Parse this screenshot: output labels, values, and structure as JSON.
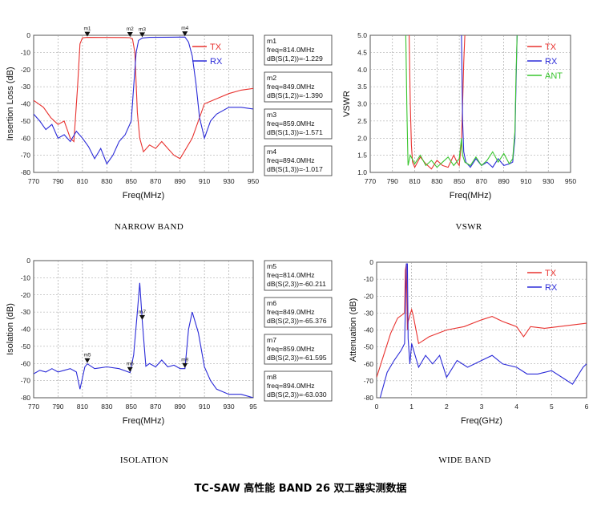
{
  "footer_title": "TC-SAW 高性能 BAND 26 双工器实测数据",
  "chart_data": [
    {
      "type": "line",
      "id": "narrow",
      "caption": "NARROW BAND",
      "xlabel": "Freq(MHz)",
      "ylabel": "Insertion Loss (dB)",
      "xlim": [
        770,
        950
      ],
      "ylim": [
        -80,
        0
      ],
      "xticks": [
        "770",
        "790",
        "810",
        "830",
        "850",
        "870",
        "890",
        "910",
        "930",
        "950"
      ],
      "yticks": [
        "0",
        "-10",
        "-20",
        "-30",
        "-40",
        "-50",
        "-60",
        "-70",
        "-80"
      ],
      "grid": true,
      "legend": "top-right",
      "series": [
        {
          "name": "TX",
          "color": "#e8322f",
          "x": [
            770,
            778,
            784,
            790,
            795,
            800,
            803,
            806,
            808,
            810,
            814,
            830,
            845,
            849,
            851,
            853,
            855,
            857,
            860,
            865,
            870,
            875,
            880,
            885,
            890,
            900,
            910,
            920,
            930,
            940,
            950
          ],
          "y": [
            -38,
            -42,
            -48,
            -52,
            -50,
            -60,
            -62,
            -30,
            -5,
            -1.5,
            -1.229,
            -1.25,
            -1.3,
            -1.39,
            -2,
            -10,
            -45,
            -60,
            -68,
            -64,
            -66,
            -62,
            -66,
            -70,
            -72,
            -60,
            -40,
            -37,
            -34,
            -32,
            -31
          ]
        },
        {
          "name": "RX",
          "color": "#2b2bd8",
          "x": [
            770,
            775,
            780,
            785,
            790,
            795,
            800,
            805,
            810,
            815,
            820,
            825,
            830,
            835,
            840,
            845,
            850,
            852,
            854,
            856,
            859,
            865,
            880,
            894,
            897,
            900,
            903,
            906,
            910,
            915,
            920,
            930,
            940,
            950
          ],
          "y": [
            -46,
            -50,
            -55,
            -52,
            -60,
            -58,
            -62,
            -56,
            -60,
            -65,
            -72,
            -66,
            -75,
            -70,
            -62,
            -58,
            -50,
            -30,
            -10,
            -3,
            -1.571,
            -1.2,
            -1.1,
            -1.017,
            -4,
            -12,
            -28,
            -48,
            -60,
            -50,
            -46,
            -42,
            -42,
            -43
          ]
        }
      ],
      "markers": [
        {
          "label": "m1",
          "freq": 814,
          "text": [
            "m1",
            "freq=814.0MHz",
            "dB(S(1,2))=-1.229"
          ]
        },
        {
          "label": "m2",
          "freq": 849,
          "text": [
            "m2",
            "freq=849.0MHz",
            "dB(S(1,2))=-1.390"
          ]
        },
        {
          "label": "m3",
          "freq": 859,
          "text": [
            "m3",
            "freq=859.0MHz",
            "dB(S(1,3))=-1.571"
          ]
        },
        {
          "label": "m4",
          "freq": 894,
          "text": [
            "m4",
            "freq=894.0MHz",
            "dB(S(1,3))=-1.017"
          ]
        }
      ]
    },
    {
      "type": "line",
      "id": "vswr",
      "caption": "VSWR",
      "xlabel": "Freq(MHz)",
      "ylabel": "VSWR",
      "xlim": [
        770,
        950
      ],
      "ylim": [
        1.0,
        5.0
      ],
      "xticks": [
        "770",
        "790",
        "810",
        "830",
        "850",
        "870",
        "890",
        "910",
        "930",
        "950"
      ],
      "yticks": [
        "5.0",
        "4.5",
        "4.0",
        "3.5",
        "3.0",
        "2.5",
        "2.0",
        "1.5",
        "1.0"
      ],
      "grid": true,
      "legend": "top-right",
      "series": [
        {
          "name": "TX",
          "color": "#e8322f",
          "x": [
            805,
            806,
            807,
            808,
            810,
            815,
            820,
            825,
            830,
            835,
            840,
            845,
            848,
            850,
            852,
            853,
            854,
            855
          ],
          "y": [
            5,
            3,
            1.8,
            1.3,
            1.15,
            1.45,
            1.25,
            1.1,
            1.35,
            1.2,
            1.15,
            1.5,
            1.3,
            1.2,
            1.9,
            3.0,
            4.2,
            5
          ]
        },
        {
          "name": "RX",
          "color": "#2b2bd8",
          "x": [
            852,
            853,
            854,
            856,
            860,
            865,
            870,
            875,
            880,
            885,
            890,
            895,
            898,
            900,
            901,
            902
          ],
          "y": [
            5,
            2.5,
            1.6,
            1.3,
            1.15,
            1.4,
            1.2,
            1.3,
            1.15,
            1.4,
            1.2,
            1.25,
            1.3,
            2.0,
            3.5,
            5
          ]
        },
        {
          "name": "ANT",
          "color": "#39c52e",
          "x": [
            802,
            803,
            804,
            806,
            810,
            815,
            820,
            825,
            830,
            835,
            840,
            845,
            850,
            852,
            853,
            855,
            860,
            865,
            870,
            875,
            880,
            885,
            890,
            895,
            898,
            900,
            901,
            902
          ],
          "y": [
            5,
            2.8,
            1.2,
            1.5,
            1.25,
            1.5,
            1.2,
            1.35,
            1.15,
            1.3,
            1.45,
            1.2,
            1.4,
            2.0,
            1.5,
            1.3,
            1.2,
            1.45,
            1.2,
            1.35,
            1.6,
            1.3,
            1.55,
            1.25,
            1.4,
            2.2,
            3.8,
            5
          ]
        }
      ]
    },
    {
      "type": "line",
      "id": "isolation",
      "caption": "ISOLATION",
      "xlabel": "Freq(MHz)",
      "ylabel": "Isolation (dB)",
      "xlim": [
        770,
        950
      ],
      "ylim": [
        -80,
        0
      ],
      "xticks": [
        "770",
        "790",
        "810",
        "830",
        "850",
        "870",
        "890",
        "910",
        "930",
        "95"
      ],
      "yticks": [
        "0",
        "-10",
        "-20",
        "-30",
        "-40",
        "-50",
        "-60",
        "-70",
        "-80"
      ],
      "grid": true,
      "series": [
        {
          "name": "S(2,3)",
          "color": "#2b2bd8",
          "x": [
            770,
            775,
            780,
            785,
            790,
            795,
            800,
            805,
            808,
            812,
            814,
            820,
            830,
            840,
            849,
            852,
            855,
            857,
            859,
            862,
            865,
            870,
            875,
            880,
            885,
            890,
            894,
            897,
            900,
            905,
            910,
            915,
            920,
            930,
            940,
            950
          ],
          "y": [
            -66,
            -64,
            -65,
            -63,
            -65,
            -64,
            -63,
            -65,
            -75,
            -62,
            -60.211,
            -63,
            -62,
            -63,
            -65.376,
            -55,
            -30,
            -13,
            -35,
            -61.595,
            -60,
            -62,
            -58,
            -62,
            -61,
            -63,
            -63.03,
            -40,
            -30,
            -42,
            -62,
            -70,
            -75,
            -78,
            -78,
            -80
          ]
        }
      ],
      "markers": [
        {
          "label": "m5",
          "freq": 814,
          "text": [
            "m5",
            "freq=814.0MHz",
            "dB(S(2,3))=-60.211"
          ]
        },
        {
          "label": "m6",
          "freq": 849,
          "text": [
            "m6",
            "freq=849.0MHz",
            "dB(S(2,3))=-65.376"
          ]
        },
        {
          "label": "m7",
          "freq": 859,
          "text": [
            "m7",
            "freq=859.0MHz",
            "dB(S(2,3))=-61.595"
          ]
        },
        {
          "label": "m8",
          "freq": 894,
          "text": [
            "m8",
            "freq=894.0MHz",
            "dB(S(2,3))=-63.030"
          ]
        }
      ]
    },
    {
      "type": "line",
      "id": "wide",
      "caption": "WIDE BAND",
      "xlabel": "Freq(GHz)",
      "ylabel": "Attenuation (dB)",
      "xlim": [
        0,
        6
      ],
      "ylim": [
        -80,
        0
      ],
      "xticks": [
        "0",
        "1",
        "2",
        "3",
        "4",
        "5",
        "6"
      ],
      "yticks": [
        "0",
        "-10",
        "-20",
        "-30",
        "-40",
        "-50",
        "-60",
        "-70",
        "-80"
      ],
      "grid": true,
      "legend": "top-right",
      "series": [
        {
          "name": "TX",
          "color": "#e8322f",
          "x": [
            0,
            0.2,
            0.4,
            0.6,
            0.8,
            0.82,
            0.85,
            0.88,
            0.9,
            1.0,
            1.05,
            1.2,
            1.5,
            2.0,
            2.5,
            3.0,
            3.3,
            3.6,
            4.0,
            4.2,
            4.4,
            4.8,
            5.2,
            5.6,
            6.0
          ],
          "y": [
            -68,
            -55,
            -42,
            -33,
            -30,
            -5,
            -1,
            -40,
            -35,
            -28,
            -32,
            -48,
            -44,
            -40,
            -38,
            -34,
            -32,
            -35,
            -38,
            -44,
            -38,
            -39,
            -38,
            -37,
            -36
          ]
        },
        {
          "name": "RX",
          "color": "#2b2bd8",
          "x": [
            0.1,
            0.3,
            0.5,
            0.7,
            0.8,
            0.85,
            0.88,
            0.9,
            0.95,
            1.0,
            1.2,
            1.4,
            1.6,
            1.8,
            2.0,
            2.3,
            2.6,
            3.0,
            3.3,
            3.6,
            4.0,
            4.3,
            4.6,
            5.0,
            5.3,
            5.6,
            5.9,
            6.0
          ],
          "y": [
            -80,
            -65,
            -58,
            -52,
            -48,
            -1,
            -1,
            -45,
            -60,
            -48,
            -62,
            -55,
            -60,
            -55,
            -68,
            -58,
            -62,
            -58,
            -55,
            -60,
            -62,
            -66,
            -66,
            -64,
            -68,
            -72,
            -62,
            -60
          ]
        }
      ]
    }
  ]
}
